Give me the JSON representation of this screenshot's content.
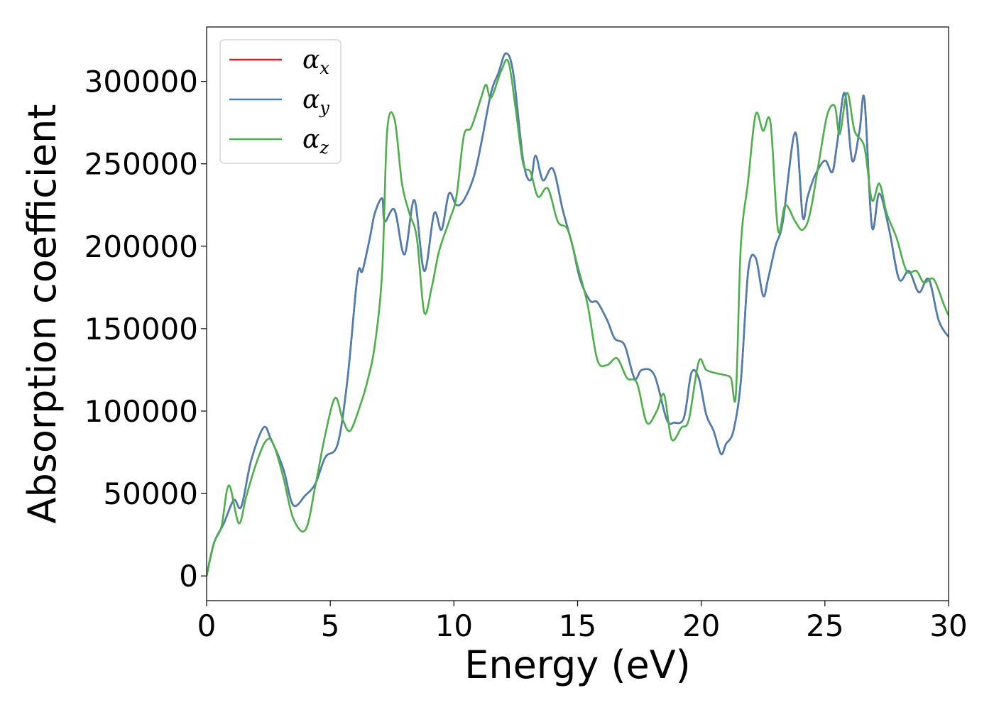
{
  "chart_data": {
    "type": "line",
    "title": "",
    "xlabel": "Energy (eV)",
    "ylabel": "Absorption coefficient",
    "xlim": [
      0,
      30
    ],
    "ylim": [
      -15000,
      333000
    ],
    "xticks": [
      0,
      5,
      10,
      15,
      20,
      25,
      30
    ],
    "yticks": [
      0,
      50000,
      100000,
      150000,
      200000,
      250000,
      300000
    ],
    "grid": false,
    "legend": "top-left",
    "series": [
      {
        "name": "α",
        "subscript": "x",
        "color": "#e41a1c",
        "x": [
          0,
          0.3,
          0.7,
          1.1,
          1.4,
          1.8,
          2.3,
          2.6,
          3.1,
          3.5,
          4.0,
          4.4,
          4.8,
          5.3,
          5.7,
          6.1,
          6.3,
          6.6,
          6.8,
          7.1,
          7.2,
          7.6,
          8.0,
          8.4,
          8.8,
          9.2,
          9.5,
          9.8,
          10.1,
          10.4,
          10.8,
          11.1,
          11.5,
          11.8,
          12.1,
          12.4,
          12.8,
          13.1,
          13.3,
          13.6,
          14.0,
          14.4,
          14.8,
          15.1,
          15.5,
          15.8,
          16.2,
          16.5,
          16.9,
          17.3,
          17.6,
          18.1,
          18.6,
          18.9,
          19.3,
          19.6,
          19.9,
          20.2,
          20.5,
          20.8,
          21.0,
          21.3,
          21.6,
          21.9,
          22.2,
          22.5,
          22.7,
          23.0,
          23.3,
          23.8,
          24.1,
          24.3,
          24.6,
          25.0,
          25.3,
          25.5,
          25.8,
          26.1,
          26.4,
          26.6,
          26.9,
          27.2,
          27.6,
          28.0,
          28.4,
          28.8,
          29.2,
          29.6,
          30.0
        ],
        "values": [
          0,
          20000,
          32000,
          46000,
          42000,
          70000,
          90000,
          83000,
          65000,
          43000,
          49000,
          56000,
          72000,
          80000,
          120000,
          182000,
          185000,
          205000,
          220000,
          229000,
          215000,
          222000,
          195000,
          228000,
          185000,
          220000,
          210000,
          232000,
          225000,
          228000,
          242000,
          262000,
          293000,
          305000,
          317000,
          305000,
          252000,
          240000,
          255000,
          240000,
          247000,
          222000,
          200000,
          180000,
          167000,
          166000,
          155000,
          144000,
          140000,
          120000,
          125000,
          122000,
          95000,
          93000,
          96000,
          123000,
          120000,
          98000,
          88000,
          74000,
          80000,
          88000,
          118000,
          185000,
          193000,
          170000,
          180000,
          200000,
          215000,
          269000,
          218000,
          230000,
          243000,
          252000,
          245000,
          263000,
          293000,
          252000,
          270000,
          289000,
          212000,
          232000,
          210000,
          180000,
          185000,
          172000,
          180000,
          155000,
          145000
        ]
      },
      {
        "name": "α",
        "subscript": "y",
        "color": "#4a7fb5",
        "x": [
          0,
          0.3,
          0.7,
          1.1,
          1.4,
          1.8,
          2.3,
          2.6,
          3.1,
          3.5,
          4.0,
          4.4,
          4.8,
          5.3,
          5.7,
          6.1,
          6.3,
          6.6,
          6.8,
          7.1,
          7.2,
          7.6,
          8.0,
          8.4,
          8.8,
          9.2,
          9.5,
          9.8,
          10.1,
          10.4,
          10.8,
          11.1,
          11.5,
          11.8,
          12.1,
          12.4,
          12.8,
          13.1,
          13.3,
          13.6,
          14.0,
          14.4,
          14.8,
          15.1,
          15.5,
          15.8,
          16.2,
          16.5,
          16.9,
          17.3,
          17.6,
          18.1,
          18.6,
          18.9,
          19.3,
          19.6,
          19.9,
          20.2,
          20.5,
          20.8,
          21.0,
          21.3,
          21.6,
          21.9,
          22.2,
          22.5,
          22.7,
          23.0,
          23.3,
          23.8,
          24.1,
          24.3,
          24.6,
          25.0,
          25.3,
          25.5,
          25.8,
          26.1,
          26.4,
          26.6,
          26.9,
          27.2,
          27.6,
          28.0,
          28.4,
          28.8,
          29.2,
          29.6,
          30.0
        ],
        "values": [
          0,
          20000,
          32000,
          46000,
          42000,
          70000,
          90000,
          83000,
          65000,
          43000,
          49000,
          56000,
          72000,
          80000,
          120000,
          182000,
          185000,
          205000,
          220000,
          229000,
          215000,
          222000,
          195000,
          228000,
          185000,
          220000,
          210000,
          232000,
          225000,
          228000,
          242000,
          262000,
          293000,
          305000,
          317000,
          305000,
          252000,
          240000,
          255000,
          240000,
          247000,
          222000,
          200000,
          180000,
          167000,
          166000,
          155000,
          144000,
          140000,
          120000,
          125000,
          122000,
          95000,
          93000,
          96000,
          123000,
          120000,
          98000,
          88000,
          74000,
          80000,
          88000,
          118000,
          185000,
          193000,
          170000,
          180000,
          200000,
          215000,
          269000,
          218000,
          230000,
          243000,
          252000,
          245000,
          263000,
          293000,
          252000,
          270000,
          289000,
          212000,
          232000,
          210000,
          180000,
          185000,
          172000,
          180000,
          155000,
          145000
        ]
      },
      {
        "name": "α",
        "subscript": "z",
        "color": "#4daf4a",
        "x": [
          0,
          0.3,
          0.6,
          0.9,
          1.3,
          1.6,
          2.0,
          2.4,
          2.7,
          3.1,
          3.5,
          4.0,
          4.4,
          4.8,
          5.2,
          5.5,
          5.8,
          6.2,
          6.5,
          6.8,
          7.1,
          7.3,
          7.6,
          7.9,
          8.2,
          8.5,
          8.8,
          9.1,
          9.4,
          9.8,
          10.1,
          10.4,
          10.7,
          11.1,
          11.3,
          11.5,
          11.9,
          12.2,
          12.5,
          12.8,
          13.1,
          13.4,
          13.8,
          14.2,
          14.6,
          15.0,
          15.4,
          15.8,
          16.2,
          16.6,
          17.0,
          17.4,
          17.8,
          18.2,
          18.5,
          18.8,
          19.2,
          19.5,
          19.9,
          20.2,
          20.6,
          20.9,
          21.2,
          21.4,
          21.6,
          21.9,
          22.2,
          22.5,
          22.8,
          23.1,
          23.4,
          23.8,
          24.1,
          24.4,
          24.8,
          25.1,
          25.4,
          25.6,
          25.9,
          26.2,
          26.6,
          26.9,
          27.2,
          27.5,
          27.9,
          28.3,
          28.7,
          29.0,
          29.4,
          29.8,
          30.0
        ],
        "values": [
          0,
          20000,
          30000,
          55000,
          32000,
          48000,
          68000,
          82000,
          80000,
          60000,
          35000,
          28000,
          55000,
          86000,
          108000,
          95000,
          88000,
          103000,
          118000,
          140000,
          185000,
          270000,
          277000,
          238000,
          220000,
          205000,
          160000,
          175000,
          197000,
          215000,
          230000,
          267000,
          272000,
          290000,
          298000,
          290000,
          306000,
          312000,
          283000,
          250000,
          245000,
          230000,
          235000,
          215000,
          210000,
          188000,
          165000,
          131000,
          128000,
          132000,
          120000,
          117000,
          93000,
          100000,
          110000,
          83000,
          90000,
          95000,
          130000,
          125000,
          123000,
          122000,
          120000,
          110000,
          200000,
          240000,
          280000,
          270000,
          275000,
          210000,
          225000,
          215000,
          210000,
          220000,
          255000,
          280000,
          285000,
          268000,
          293000,
          270000,
          260000,
          228000,
          238000,
          220000,
          205000,
          185000,
          185000,
          178000,
          180000,
          165000,
          158000
        ]
      }
    ]
  }
}
